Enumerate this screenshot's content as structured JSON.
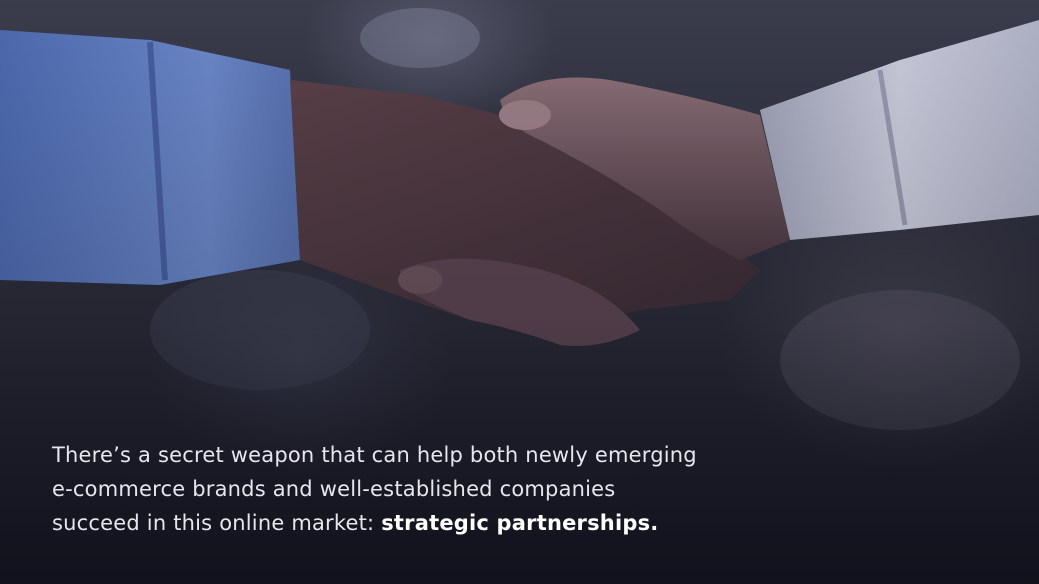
{
  "caption": {
    "line1": "There’s a secret weapon that can help both newly emerging",
    "line2": "e-commerce brands and well-established companies",
    "line3_prefix": "succeed in this online market: ",
    "line3_emphasis": "strategic partnerships."
  },
  "image": {
    "subject": "handshake-photo",
    "palette": {
      "left_sleeve": "#5b77b8",
      "right_sleeve": "#b9bccd",
      "skin": "#4b3a42",
      "background": "#2c2d3a"
    }
  }
}
